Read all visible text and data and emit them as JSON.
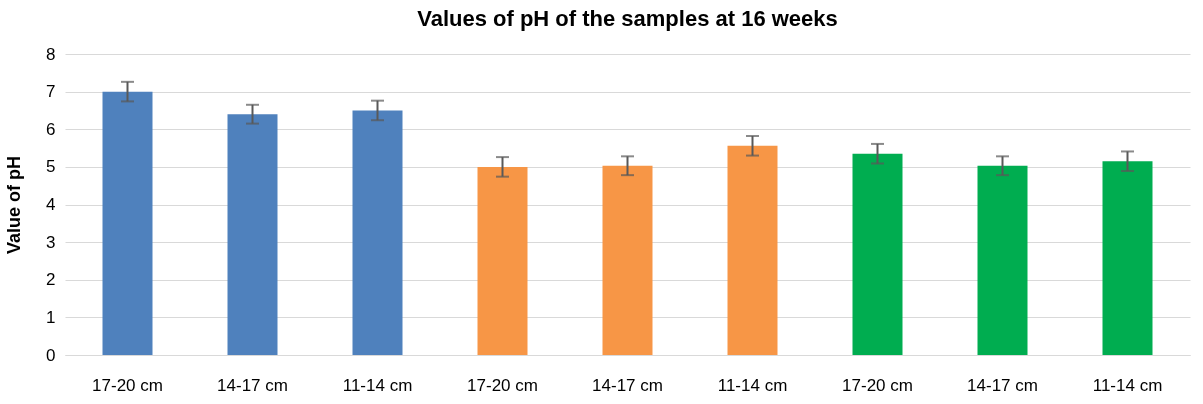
{
  "chart_data": {
    "type": "bar",
    "title": "Values of pH of the samples at 16 weeks",
    "ylabel": "Value of pH",
    "categories": [
      "17-20 cm",
      "14-17 cm",
      "11-14 cm",
      "17-20 cm",
      "14-17 cm",
      "11-14 cm",
      "17-20 cm",
      "14-17 cm",
      "11-14 cm"
    ],
    "values": [
      7.0,
      6.4,
      6.5,
      5.0,
      5.03,
      5.56,
      5.35,
      5.03,
      5.15
    ],
    "errors": [
      0.26,
      0.25,
      0.26,
      0.26,
      0.25,
      0.26,
      0.26,
      0.25,
      0.26
    ],
    "colors": [
      "#4f81bd",
      "#4f81bd",
      "#4f81bd",
      "#f79646",
      "#f79646",
      "#f79646",
      "#00ad50",
      "#00ad50",
      "#00ad50"
    ],
    "ylim": [
      0,
      8
    ],
    "yticks": [
      0,
      1,
      2,
      3,
      4,
      5,
      6,
      7,
      8
    ],
    "grid": "y"
  }
}
